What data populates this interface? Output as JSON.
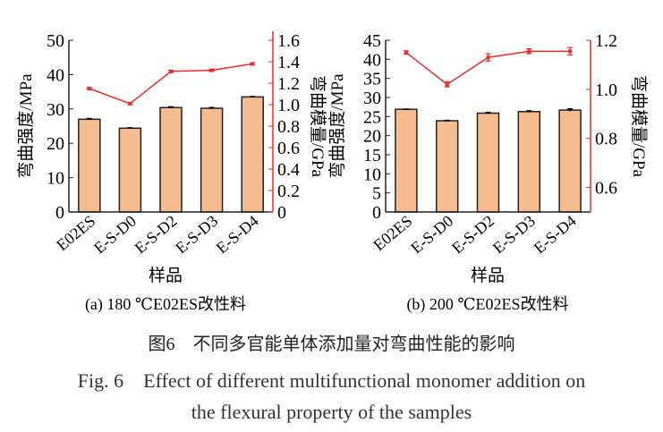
{
  "chart_data": [
    {
      "type": "bar",
      "panel_label": "(a) 180 ℃E02ES改性料",
      "categories": [
        "E02ES",
        "E-S-D0",
        "E-S-D2",
        "E-S-D3",
        "E-S-D4"
      ],
      "xlabel": "样品",
      "ylabel": "弯曲强度/MPa",
      "ylim": [
        0,
        50
      ],
      "yticks": [
        0,
        10,
        20,
        30,
        40,
        50
      ],
      "y2label": "弯曲模量/GPa",
      "y2lim": [
        0,
        1.6
      ],
      "y2ticks": [
        "0",
        "0.2",
        "0.4",
        "0.6",
        "0.8",
        "1.0",
        "1.2",
        "1.4",
        "1.6"
      ],
      "series": [
        {
          "name": "弯曲强度",
          "type": "bar",
          "values": [
            27.0,
            24.4,
            30.4,
            30.2,
            33.5
          ],
          "errors": [
            0.2,
            0.1,
            0.2,
            0.2,
            0.1
          ]
        },
        {
          "name": "弯曲模量",
          "type": "line",
          "axis": "right",
          "values": [
            1.15,
            1.01,
            1.31,
            1.32,
            1.38
          ],
          "errors": [
            0.01,
            0.01,
            0.01,
            0.01,
            0.01
          ]
        }
      ]
    },
    {
      "type": "bar",
      "panel_label": "(b) 200 ℃E02ES改性料",
      "categories": [
        "E02ES",
        "E-S-D0",
        "E-S-D2",
        "E-S-D3",
        "E-S-D4"
      ],
      "xlabel": "样品",
      "ylabel": "弯曲强度/MPa",
      "ylim": [
        0,
        45
      ],
      "yticks": [
        0,
        5,
        10,
        15,
        20,
        25,
        30,
        35,
        40,
        45
      ],
      "y2label": "弯曲模量/GPa",
      "y2lim": [
        0.5,
        1.2
      ],
      "y2ticks": [
        "0.6",
        "0.8",
        "1.0",
        "1.2"
      ],
      "series": [
        {
          "name": "弯曲强度",
          "type": "bar",
          "values": [
            26.9,
            23.9,
            25.9,
            26.3,
            26.7
          ],
          "errors": [
            0.05,
            0.1,
            0.2,
            0.2,
            0.3
          ]
        },
        {
          "name": "弯曲模量",
          "type": "line",
          "axis": "right",
          "values": [
            1.15,
            1.02,
            1.13,
            1.155,
            1.155
          ],
          "errors": [
            0.007,
            0.01,
            0.015,
            0.01,
            0.015
          ]
        }
      ]
    }
  ],
  "colors": {
    "bar": "#f4bc8f",
    "line": "#ee2b2b",
    "axis": "#222"
  },
  "caption": {
    "cn": "图6　不同多官能单体添加量对弯曲性能的影响",
    "en1": "Fig. 6　Effect of different multifunctional monomer addition on",
    "en2": "the flexural property of the samples"
  }
}
